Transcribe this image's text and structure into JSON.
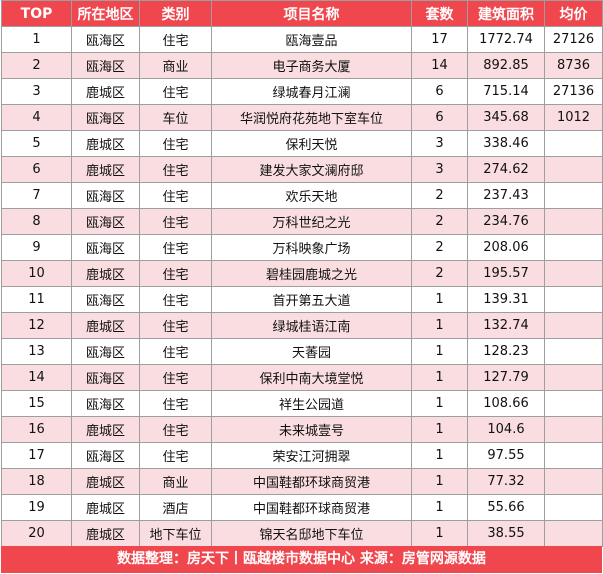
{
  "table": {
    "headers": [
      "TOP",
      "所在地区",
      "类别",
      "项目名称",
      "套数",
      "建筑面积",
      "均价"
    ],
    "rows": [
      [
        "1",
        "瓯海区",
        "住宅",
        "瓯海壹品",
        "17",
        "1772.74",
        "27126"
      ],
      [
        "2",
        "瓯海区",
        "商业",
        "电子商务大厦",
        "14",
        "892.85",
        "8736"
      ],
      [
        "3",
        "鹿城区",
        "住宅",
        "绿城春月江澜",
        "6",
        "715.14",
        "27136"
      ],
      [
        "4",
        "瓯海区",
        "车位",
        "华润悦府花苑地下室车位",
        "6",
        "345.68",
        "1012"
      ],
      [
        "5",
        "鹿城区",
        "住宅",
        "保利天悦",
        "3",
        "338.46",
        ""
      ],
      [
        "6",
        "鹿城区",
        "住宅",
        "建发大家文澜府邸",
        "3",
        "274.62",
        ""
      ],
      [
        "7",
        "瓯海区",
        "住宅",
        "欢乐天地",
        "2",
        "237.43",
        ""
      ],
      [
        "8",
        "瓯海区",
        "住宅",
        "万科世纪之光",
        "2",
        "234.76",
        ""
      ],
      [
        "9",
        "瓯海区",
        "住宅",
        "万科映象广场",
        "2",
        "208.06",
        ""
      ],
      [
        "10",
        "鹿城区",
        "住宅",
        "碧桂园鹿城之光",
        "2",
        "195.57",
        ""
      ],
      [
        "11",
        "瓯海区",
        "住宅",
        "首开第五大道",
        "1",
        "139.31",
        ""
      ],
      [
        "12",
        "鹿城区",
        "住宅",
        "绿城桂语江南",
        "1",
        "132.74",
        ""
      ],
      [
        "13",
        "瓯海区",
        "住宅",
        "天萫园",
        "1",
        "128.23",
        ""
      ],
      [
        "14",
        "瓯海区",
        "住宅",
        "保利中南大境堂悦",
        "1",
        "127.79",
        ""
      ],
      [
        "15",
        "瓯海区",
        "住宅",
        "祥生公园道",
        "1",
        "108.66",
        ""
      ],
      [
        "16",
        "鹿城区",
        "住宅",
        "未来城壹号",
        "1",
        "104.6",
        ""
      ],
      [
        "17",
        "瓯海区",
        "住宅",
        "荣安江河拥翠",
        "1",
        "97.55",
        ""
      ],
      [
        "18",
        "鹿城区",
        "商业",
        "中国鞋都环球商贸港",
        "1",
        "77.32",
        ""
      ],
      [
        "19",
        "鹿城区",
        "酒店",
        "中国鞋都环球商贸港",
        "1",
        "55.66",
        ""
      ],
      [
        "20",
        "鹿城区",
        "地下车位",
        "锦天名邸地下车位",
        "1",
        "38.55",
        ""
      ]
    ]
  },
  "footer": {
    "text": "数据整理：房天下丨瓯越楼市数据中心   来源：房管网源数据"
  },
  "colors": {
    "header_bg": "#f0474f",
    "alt_row_bg": "#f9dde0",
    "border": "#9e9e9e"
  }
}
